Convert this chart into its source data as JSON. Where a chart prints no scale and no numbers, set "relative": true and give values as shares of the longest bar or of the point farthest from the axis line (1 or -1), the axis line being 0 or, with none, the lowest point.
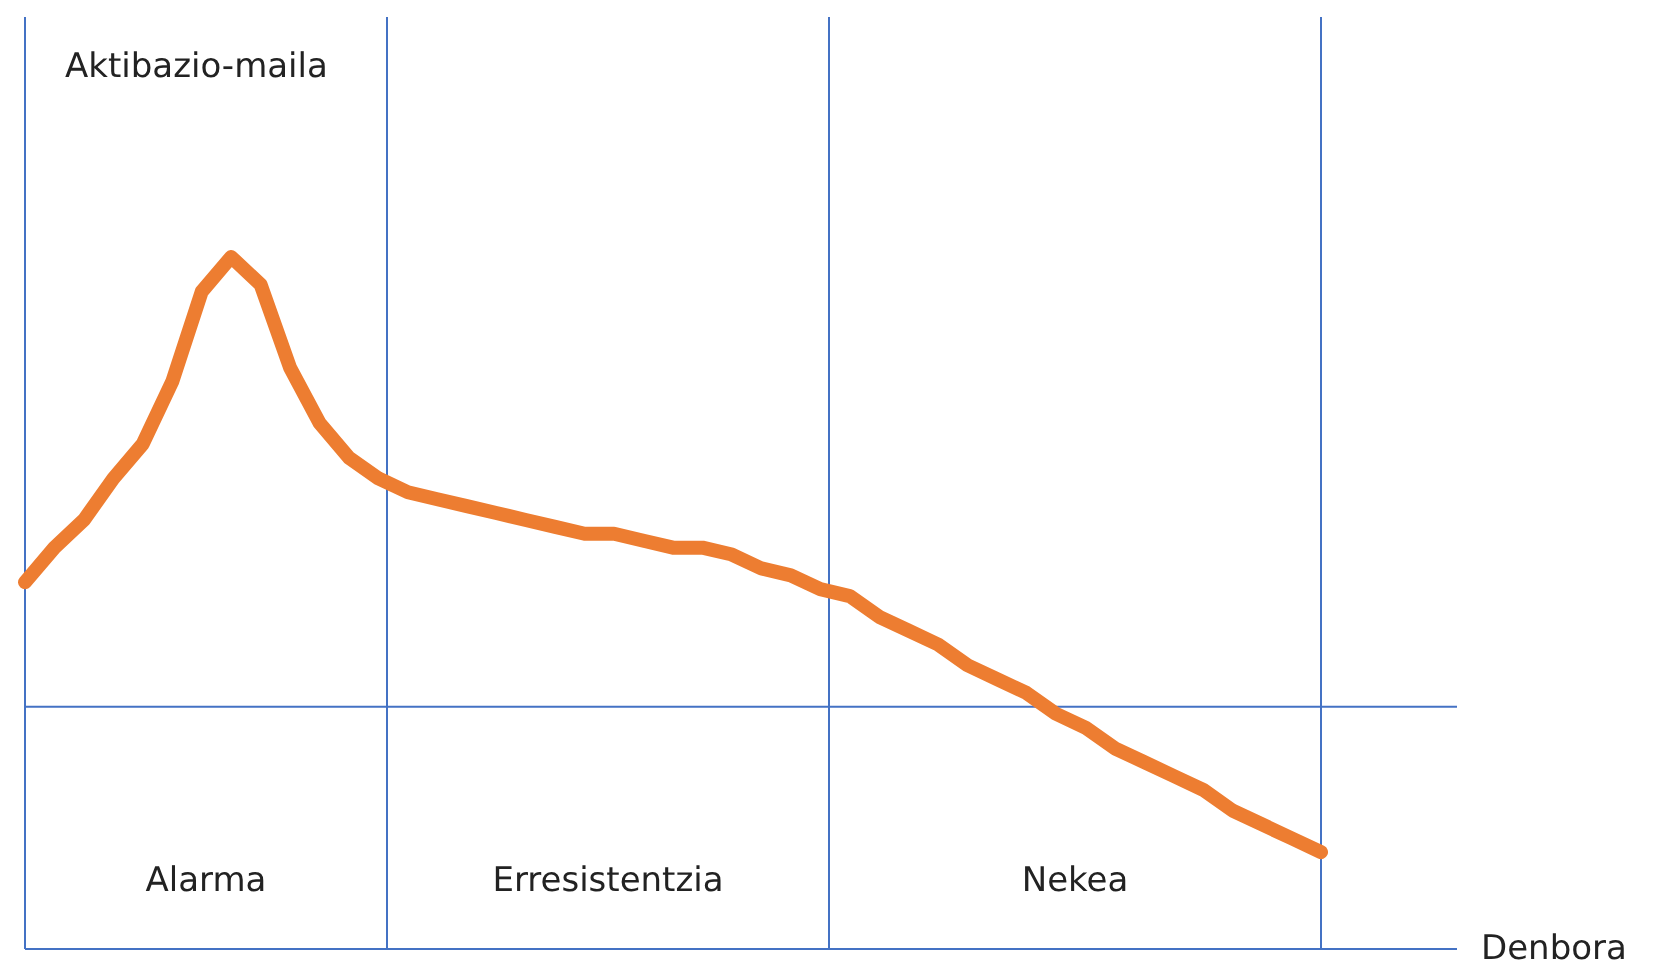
{
  "chart_data": {
    "type": "line",
    "relative": true,
    "xlabel": "Denbora",
    "ylabel": "Aktibazio-maila",
    "categories": [
      null,
      null,
      null,
      null,
      null,
      null,
      null,
      null,
      null,
      null,
      null,
      null,
      null,
      null,
      null,
      null,
      null,
      null,
      null,
      null,
      null,
      null,
      null,
      null,
      null,
      null,
      null,
      null,
      null,
      null,
      null,
      null,
      null,
      null,
      null,
      null,
      null,
      null,
      null,
      null,
      null,
      null,
      null,
      null,
      null
    ],
    "series": [
      {
        "color": "#ed7d31",
        "values": [
          0.53,
          0.58,
          0.62,
          0.68,
          0.73,
          0.82,
          0.95,
          1,
          0.96,
          0.84,
          0.76,
          0.71,
          0.68,
          0.66,
          0.65,
          0.64,
          0.63,
          0.62,
          0.61,
          0.6,
          0.6,
          0.59,
          0.58,
          0.58,
          0.57,
          0.55,
          0.54,
          0.52,
          0.51,
          0.48,
          0.46,
          0.44,
          0.41,
          0.39,
          0.37,
          0.34,
          0.32,
          0.29,
          0.27,
          0.25,
          0.23,
          0.2,
          0.18,
          0.16,
          0.14
        ]
      }
    ],
    "ref_lines": [
      {
        "axis": "y",
        "value": 0.35,
        "color": "#4472c4"
      }
    ],
    "annotations": [
      "Alarma",
      "Erresistentzia",
      "Nekea"
    ]
  }
}
